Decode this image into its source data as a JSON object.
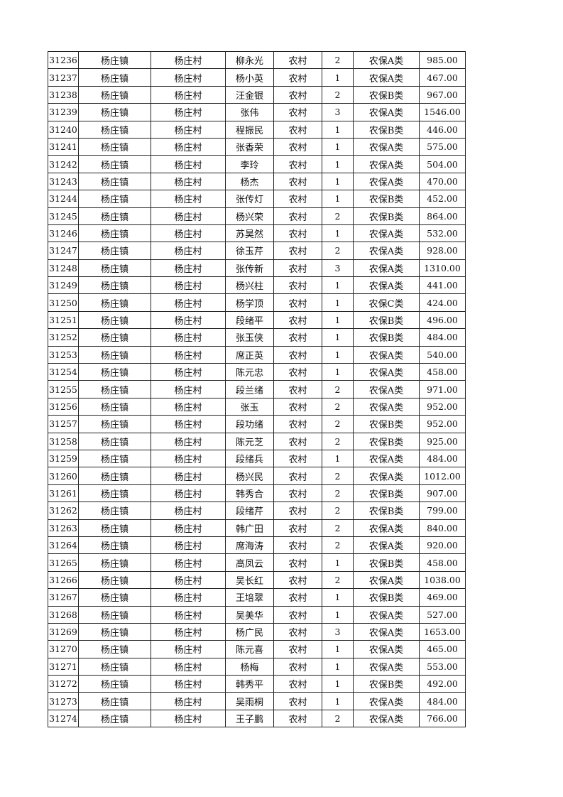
{
  "table": {
    "rows": [
      [
        "31236",
        "杨庄镇",
        "杨庄村",
        "柳永光",
        "农村",
        "2",
        "农保A类",
        "985.00"
      ],
      [
        "31237",
        "杨庄镇",
        "杨庄村",
        "杨小英",
        "农村",
        "1",
        "农保A类",
        "467.00"
      ],
      [
        "31238",
        "杨庄镇",
        "杨庄村",
        "汪金银",
        "农村",
        "2",
        "农保B类",
        "967.00"
      ],
      [
        "31239",
        "杨庄镇",
        "杨庄村",
        "张伟",
        "农村",
        "3",
        "农保A类",
        "1546.00"
      ],
      [
        "31240",
        "杨庄镇",
        "杨庄村",
        "程振民",
        "农村",
        "1",
        "农保B类",
        "446.00"
      ],
      [
        "31241",
        "杨庄镇",
        "杨庄村",
        "张香荣",
        "农村",
        "1",
        "农保A类",
        "575.00"
      ],
      [
        "31242",
        "杨庄镇",
        "杨庄村",
        "李玲",
        "农村",
        "1",
        "农保A类",
        "504.00"
      ],
      [
        "31243",
        "杨庄镇",
        "杨庄村",
        "杨杰",
        "农村",
        "1",
        "农保A类",
        "470.00"
      ],
      [
        "31244",
        "杨庄镇",
        "杨庄村",
        "张传灯",
        "农村",
        "1",
        "农保B类",
        "452.00"
      ],
      [
        "31245",
        "杨庄镇",
        "杨庄村",
        "杨兴荣",
        "农村",
        "2",
        "农保B类",
        "864.00"
      ],
      [
        "31246",
        "杨庄镇",
        "杨庄村",
        "苏昊然",
        "农村",
        "1",
        "农保A类",
        "532.00"
      ],
      [
        "31247",
        "杨庄镇",
        "杨庄村",
        "徐玉芹",
        "农村",
        "2",
        "农保A类",
        "928.00"
      ],
      [
        "31248",
        "杨庄镇",
        "杨庄村",
        "张传新",
        "农村",
        "3",
        "农保A类",
        "1310.00"
      ],
      [
        "31249",
        "杨庄镇",
        "杨庄村",
        "杨兴柱",
        "农村",
        "1",
        "农保A类",
        "441.00"
      ],
      [
        "31250",
        "杨庄镇",
        "杨庄村",
        "杨学顶",
        "农村",
        "1",
        "农保C类",
        "424.00"
      ],
      [
        "31251",
        "杨庄镇",
        "杨庄村",
        "段绪平",
        "农村",
        "1",
        "农保B类",
        "496.00"
      ],
      [
        "31252",
        "杨庄镇",
        "杨庄村",
        "张玉侠",
        "农村",
        "1",
        "农保B类",
        "484.00"
      ],
      [
        "31253",
        "杨庄镇",
        "杨庄村",
        "席正英",
        "农村",
        "1",
        "农保A类",
        "540.00"
      ],
      [
        "31254",
        "杨庄镇",
        "杨庄村",
        "陈元忠",
        "农村",
        "1",
        "农保A类",
        "458.00"
      ],
      [
        "31255",
        "杨庄镇",
        "杨庄村",
        "段兰绪",
        "农村",
        "2",
        "农保A类",
        "971.00"
      ],
      [
        "31256",
        "杨庄镇",
        "杨庄村",
        "张玉",
        "农村",
        "2",
        "农保A类",
        "952.00"
      ],
      [
        "31257",
        "杨庄镇",
        "杨庄村",
        "段功绪",
        "农村",
        "2",
        "农保B类",
        "952.00"
      ],
      [
        "31258",
        "杨庄镇",
        "杨庄村",
        "陈元芝",
        "农村",
        "2",
        "农保B类",
        "925.00"
      ],
      [
        "31259",
        "杨庄镇",
        "杨庄村",
        "段绪兵",
        "农村",
        "1",
        "农保A类",
        "484.00"
      ],
      [
        "31260",
        "杨庄镇",
        "杨庄村",
        "杨兴民",
        "农村",
        "2",
        "农保A类",
        "1012.00"
      ],
      [
        "31261",
        "杨庄镇",
        "杨庄村",
        "韩秀合",
        "农村",
        "2",
        "农保B类",
        "907.00"
      ],
      [
        "31262",
        "杨庄镇",
        "杨庄村",
        "段绪芹",
        "农村",
        "2",
        "农保B类",
        "799.00"
      ],
      [
        "31263",
        "杨庄镇",
        "杨庄村",
        "韩广田",
        "农村",
        "2",
        "农保A类",
        "840.00"
      ],
      [
        "31264",
        "杨庄镇",
        "杨庄村",
        "席海涛",
        "农村",
        "2",
        "农保A类",
        "920.00"
      ],
      [
        "31265",
        "杨庄镇",
        "杨庄村",
        "高凤云",
        "农村",
        "1",
        "农保B类",
        "458.00"
      ],
      [
        "31266",
        "杨庄镇",
        "杨庄村",
        "吴长红",
        "农村",
        "2",
        "农保A类",
        "1038.00"
      ],
      [
        "31267",
        "杨庄镇",
        "杨庄村",
        "王培翠",
        "农村",
        "1",
        "农保B类",
        "469.00"
      ],
      [
        "31268",
        "杨庄镇",
        "杨庄村",
        "吴美华",
        "农村",
        "1",
        "农保A类",
        "527.00"
      ],
      [
        "31269",
        "杨庄镇",
        "杨庄村",
        "杨广民",
        "农村",
        "3",
        "农保A类",
        "1653.00"
      ],
      [
        "31270",
        "杨庄镇",
        "杨庄村",
        "陈元喜",
        "农村",
        "1",
        "农保A类",
        "465.00"
      ],
      [
        "31271",
        "杨庄镇",
        "杨庄村",
        "杨梅",
        "农村",
        "1",
        "农保A类",
        "553.00"
      ],
      [
        "31272",
        "杨庄镇",
        "杨庄村",
        "韩秀平",
        "农村",
        "1",
        "农保B类",
        "492.00"
      ],
      [
        "31273",
        "杨庄镇",
        "杨庄村",
        "吴雨桐",
        "农村",
        "1",
        "农保A类",
        "484.00"
      ],
      [
        "31274",
        "杨庄镇",
        "杨庄村",
        "王子鹏",
        "农村",
        "2",
        "农保A类",
        "766.00"
      ]
    ]
  }
}
